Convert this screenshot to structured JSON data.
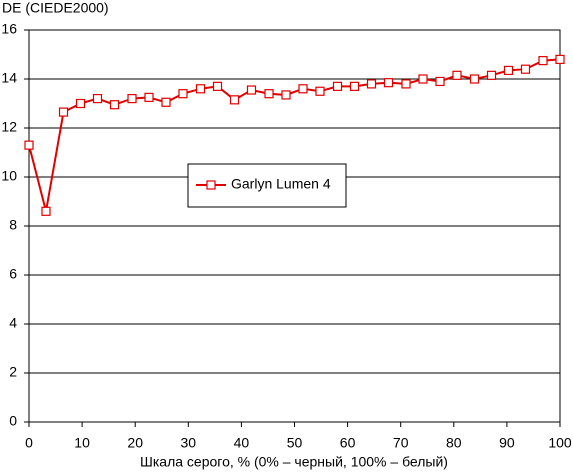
{
  "chart_data": {
    "type": "line",
    "y_label": "DE (CIEDE2000)",
    "x_label": "Шкала серого, % (0% – черный, 100% – белый)",
    "x": [
      0,
      3.2,
      6.5,
      9.7,
      12.9,
      16.1,
      19.4,
      22.6,
      25.8,
      29,
      32.3,
      35.5,
      38.7,
      41.9,
      45.2,
      48.4,
      51.6,
      54.8,
      58.1,
      61.3,
      64.5,
      67.7,
      71,
      74.2,
      77.4,
      80.6,
      83.9,
      87.1,
      90.3,
      93.5,
      96.8,
      100
    ],
    "series": [
      {
        "name": "Garlyn Lumen 4",
        "color": "#e00000",
        "values": [
          11.3,
          8.6,
          12.65,
          13.0,
          13.2,
          12.95,
          13.2,
          13.25,
          13.05,
          13.4,
          13.6,
          13.7,
          13.15,
          13.55,
          13.4,
          13.35,
          13.6,
          13.5,
          13.7,
          13.7,
          13.8,
          13.85,
          13.8,
          14.0,
          13.9,
          14.15,
          14.0,
          14.15,
          14.35,
          14.4,
          14.75,
          14.8
        ]
      }
    ],
    "xlim": [
      0,
      100
    ],
    "xticks": [
      0,
      10,
      20,
      30,
      40,
      50,
      60,
      70,
      80,
      90,
      100
    ],
    "ylim": [
      0,
      16
    ],
    "yticks": [
      0,
      2,
      4,
      6,
      8,
      10,
      12,
      14,
      16
    ],
    "grid": true
  }
}
